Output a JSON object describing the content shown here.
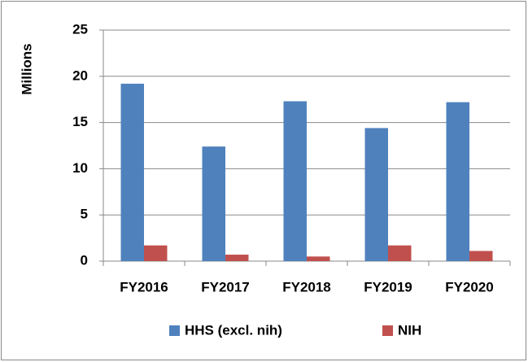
{
  "chart_data": {
    "type": "bar",
    "y_label": "Millions",
    "categories": [
      "FY2016",
      "FY2017",
      "FY2018",
      "FY2019",
      "FY2020"
    ],
    "series": [
      {
        "name": "HHS (excl. nih)",
        "color": "#4f81bd",
        "values": [
          19.2,
          12.4,
          17.3,
          14.4,
          17.2
        ]
      },
      {
        "name": "NIH",
        "color": "#c0504d",
        "values": [
          1.7,
          0.7,
          0.5,
          1.7,
          1.1
        ]
      }
    ],
    "ylim": [
      0,
      25
    ],
    "yticks": [
      0,
      5,
      10,
      15,
      20,
      25
    ],
    "grid": true,
    "legend": "bottom"
  }
}
